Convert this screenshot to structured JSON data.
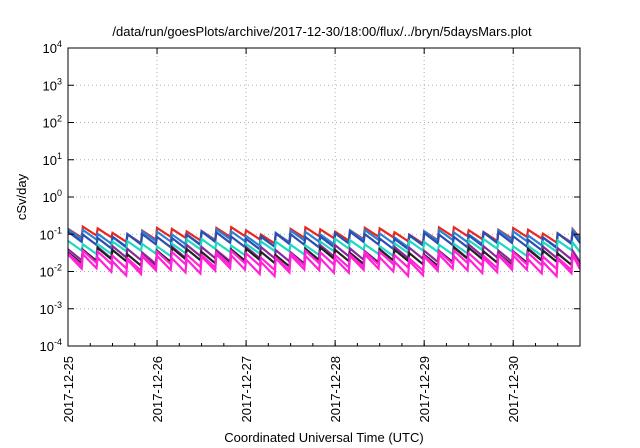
{
  "chart_data": {
    "type": "line",
    "title": "/data/run/goesPlots/archive/2017-12-30/18:00/flux/../bryn/5daysMars.plot",
    "xlabel": "Coordinated Universal Time (UTC)",
    "ylabel": "cSv/day",
    "y_scale": "log",
    "ylim": [
      0.0001,
      10000
    ],
    "y_ticks": [
      {
        "base": "10",
        "exp": "-4",
        "value": 0.0001
      },
      {
        "base": "10",
        "exp": "-3",
        "value": 0.001
      },
      {
        "base": "10",
        "exp": "-2",
        "value": 0.01
      },
      {
        "base": "10",
        "exp": "-1",
        "value": 0.1
      },
      {
        "base": "10",
        "exp": "0",
        "value": 1
      },
      {
        "base": "10",
        "exp": "1",
        "value": 10
      },
      {
        "base": "10",
        "exp": "2",
        "value": 100
      },
      {
        "base": "10",
        "exp": "3",
        "value": 1000
      },
      {
        "base": "10",
        "exp": "4",
        "value": 10000
      }
    ],
    "xlim": [
      "2017-12-25",
      "2017-12-30T18:00"
    ],
    "x_ticks": [
      "2017-12-25",
      "2017-12-26",
      "2017-12-27",
      "2017-12-28",
      "2017-12-29",
      "2017-12-30"
    ],
    "grid": true,
    "legend": "none",
    "sawtooth_cycles_per_day": 6,
    "series": [
      {
        "color": "#e8281f",
        "peak": 0.13,
        "trough": 0.075
      },
      {
        "color": "#2d7fd2",
        "peak": 0.11,
        "trough": 0.06
      },
      {
        "color": "#2b4fb0",
        "peak": 0.095,
        "trough": 0.05
      },
      {
        "color": "#20d8c2",
        "peak": 0.06,
        "trough": 0.033
      },
      {
        "color": "#8a2a9a",
        "peak": 0.042,
        "trough": 0.021
      },
      {
        "color": "#222222",
        "peak": 0.036,
        "trough": 0.018
      },
      {
        "color": "#ff22d6",
        "peak": 0.03,
        "trough": 0.014
      },
      {
        "color": "#ff22d6",
        "peak": 0.024,
        "trough": 0.01
      }
    ]
  }
}
